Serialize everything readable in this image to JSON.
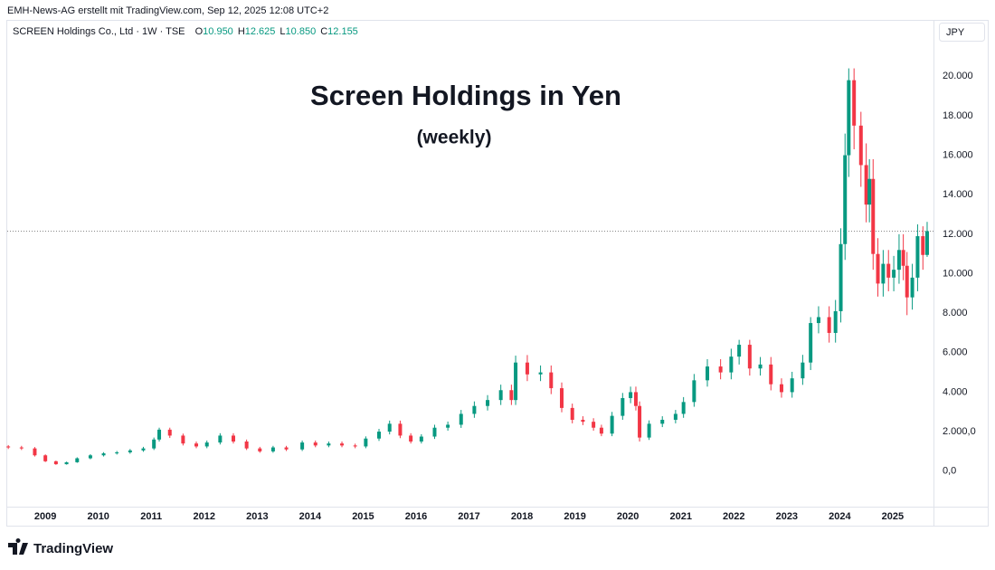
{
  "chart_data": {
    "type": "candlestick",
    "attribution": "EMH-News-AG erstellt mit TradingView.com, Sep 12, 2025 12:08 UTC+2",
    "symbol": "SCREEN Holdings Co., Ltd · 1W · TSE",
    "ohlc_prefixes": [
      "O",
      "H",
      "L",
      "C"
    ],
    "value_labels": [
      "10.950",
      "12.625",
      "10.850",
      "12.155"
    ],
    "currency": "JPY",
    "title": "Screen Holdings in Yen",
    "subtitle": "(weekly)",
    "brand": "TradingView",
    "up_color": "#089981",
    "down_color": "#f23645",
    "price_line": true,
    "xlim": [
      2008.28,
      2025.77
    ],
    "xticks": [
      2009,
      2010,
      2011,
      2012,
      2013,
      2014,
      2015,
      2016,
      2017,
      2018,
      2019,
      2020,
      2021,
      2022,
      2023,
      2024,
      2025
    ],
    "ylim": [
      -1800,
      21800
    ],
    "yticks": [
      {
        "value": 0,
        "label": "0,0"
      },
      {
        "value": 2000,
        "label": "2.000,0"
      },
      {
        "value": 4000,
        "label": "4.000"
      },
      {
        "value": 6000,
        "label": "6.000"
      },
      {
        "value": 8000,
        "label": "8.000"
      },
      {
        "value": 10000,
        "label": "10.000"
      },
      {
        "value": 12000,
        "label": "12.000"
      },
      {
        "value": 14000,
        "label": "14.000"
      },
      {
        "value": 16000,
        "label": "16.000"
      },
      {
        "value": 18000,
        "label": "18.000"
      },
      {
        "value": 20000,
        "label": "20.000"
      }
    ],
    "x": [
      2008.3,
      2008.55,
      2008.8,
      2009.0,
      2009.2,
      2009.4,
      2009.6,
      2009.85,
      2010.1,
      2010.35,
      2010.6,
      2010.85,
      2011.05,
      2011.15,
      2011.35,
      2011.6,
      2011.85,
      2012.05,
      2012.3,
      2012.55,
      2012.8,
      2013.05,
      2013.3,
      2013.55,
      2013.85,
      2014.1,
      2014.35,
      2014.6,
      2014.85,
      2015.05,
      2015.3,
      2015.5,
      2015.7,
      2015.9,
      2016.1,
      2016.35,
      2016.6,
      2016.85,
      2017.1,
      2017.35,
      2017.6,
      2017.8,
      2017.88,
      2018.1,
      2018.35,
      2018.55,
      2018.75,
      2018.95,
      2019.15,
      2019.35,
      2019.5,
      2019.7,
      2019.9,
      2020.05,
      2020.15,
      2020.22,
      2020.4,
      2020.65,
      2020.9,
      2021.05,
      2021.25,
      2021.5,
      2021.75,
      2021.95,
      2022.1,
      2022.3,
      2022.5,
      2022.7,
      2022.9,
      2023.1,
      2023.3,
      2023.45,
      2023.6,
      2023.8,
      2023.92,
      2024.02,
      2024.1,
      2024.17,
      2024.27,
      2024.4,
      2024.5,
      2024.56,
      2024.63,
      2024.72,
      2024.82,
      2024.92,
      2025.02,
      2025.12,
      2025.2,
      2025.27,
      2025.37,
      2025.47,
      2025.57,
      2025.65
    ],
    "open": [
      1250,
      1200,
      1150,
      800,
      500,
      350,
      450,
      650,
      800,
      900,
      950,
      1050,
      1150,
      1600,
      2100,
      1800,
      1400,
      1250,
      1450,
      1800,
      1500,
      1150,
      1000,
      1200,
      1100,
      1450,
      1300,
      1400,
      1300,
      1250,
      1650,
      2000,
      2400,
      1800,
      1500,
      1750,
      2200,
      2350,
      2900,
      3300,
      3600,
      4100,
      3600,
      5500,
      4900,
      5000,
      4200,
      3200,
      2600,
      2500,
      2200,
      1900,
      2800,
      3700,
      4000,
      3300,
      1700,
      2400,
      2600,
      2900,
      3500,
      4600,
      5300,
      5000,
      5800,
      6400,
      5200,
      5400,
      4400,
      4000,
      4700,
      5500,
      7500,
      7800,
      7000,
      8100,
      11500,
      16000,
      19800,
      17500,
      15500,
      13500,
      14800,
      11000,
      9500,
      10500,
      9800,
      10200,
      11200,
      10400,
      8800,
      9800,
      11900,
      10950
    ],
    "high": [
      1320,
      1280,
      1220,
      850,
      530,
      480,
      700,
      860,
      960,
      1020,
      1120,
      1230,
      1700,
      2200,
      2200,
      1900,
      1500,
      1550,
      1920,
      1920,
      1600,
      1230,
      1280,
      1280,
      1550,
      1550,
      1500,
      1500,
      1390,
      1760,
      2140,
      2560,
      2560,
      1920,
      1870,
      2350,
      2510,
      3100,
      3530,
      3850,
      4380,
      4380,
      5850,
      5880,
      5350,
      5350,
      4490,
      3420,
      2780,
      2680,
      2350,
      3000,
      3960,
      4280,
      4280,
      3530,
      2570,
      2780,
      3100,
      3750,
      4920,
      5670,
      5670,
      6200,
      6650,
      6650,
      5780,
      5780,
      4700,
      5030,
      5890,
      7800,
      8350,
      8350,
      8670,
      12300,
      17100,
      20400,
      20400,
      18200,
      16600,
      15800,
      15800,
      11800,
      11200,
      11200,
      10900,
      12000,
      12000,
      11100,
      10500,
      12500,
      12400,
      12625
    ],
    "low": [
      1120,
      1070,
      740,
      460,
      320,
      330,
      420,
      600,
      740,
      840,
      880,
      980,
      1070,
      1500,
      1680,
      1300,
      1160,
      1160,
      1350,
      1400,
      1070,
      930,
      930,
      1020,
      1020,
      1210,
      1210,
      1210,
      1160,
      1160,
      1530,
      1860,
      1670,
      1400,
      1400,
      1630,
      2050,
      2190,
      2700,
      3070,
      3350,
      3350,
      3350,
      4560,
      4560,
      3900,
      2980,
      2420,
      2330,
      2050,
      1770,
      1770,
      2600,
      3440,
      3070,
      1500,
      1580,
      2230,
      2420,
      2700,
      3260,
      4280,
      4650,
      4650,
      5400,
      4840,
      4840,
      4090,
      3720,
      3720,
      4370,
      5120,
      6980,
      6510,
      6510,
      7530,
      10700,
      14900,
      16300,
      14400,
      12600,
      12600,
      10200,
      8840,
      8840,
      9110,
      9110,
      9490,
      9670,
      7900,
      8180,
      9110,
      10200,
      10850
    ],
    "close": [
      1200,
      1150,
      800,
      500,
      350,
      450,
      650,
      800,
      900,
      950,
      1050,
      1150,
      1600,
      2100,
      1800,
      1400,
      1250,
      1450,
      1800,
      1500,
      1150,
      1000,
      1200,
      1100,
      1450,
      1300,
      1400,
      1300,
      1250,
      1650,
      2000,
      2400,
      1800,
      1500,
      1750,
      2200,
      2350,
      2900,
      3300,
      3600,
      4100,
      3600,
      5500,
      4900,
      5000,
      4200,
      3200,
      2600,
      2500,
      2200,
      1900,
      2800,
      3700,
      4000,
      3300,
      1700,
      2400,
      2600,
      2900,
      3500,
      4600,
      5300,
      5000,
      5800,
      6400,
      5200,
      5400,
      4400,
      4000,
      4700,
      5500,
      7500,
      7800,
      7000,
      8100,
      11500,
      16000,
      19800,
      17500,
      15500,
      13500,
      14800,
      11000,
      9500,
      10500,
      9800,
      10200,
      11200,
      10400,
      8800,
      9800,
      11900,
      10950,
      12155
    ]
  }
}
